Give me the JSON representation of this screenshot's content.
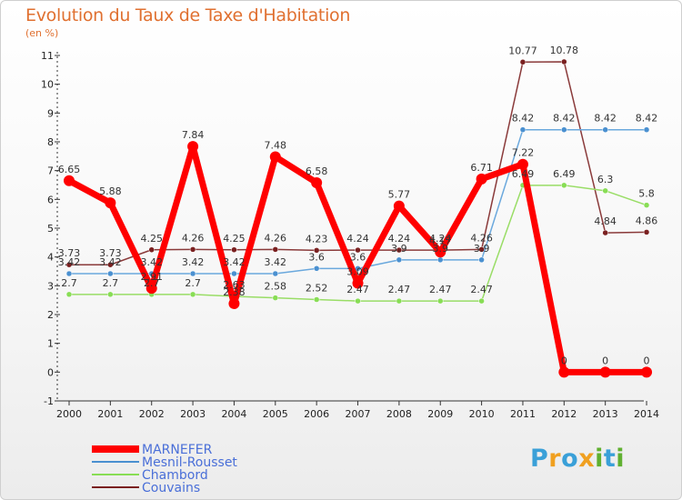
{
  "title": "Evolution du Taux de Taxe d'Habitation",
  "unit": "(en %)",
  "logo": {
    "text": "Proxiti",
    "colors": [
      "#3aa0d8",
      "#f0a020",
      "#3aa0d8",
      "#f0a020",
      "#60b030",
      "#3aa0d8",
      "#60b030"
    ]
  },
  "chart_data": {
    "type": "line",
    "title": "Evolution du Taux de Taxe d'Habitation",
    "ylabel": "(en %)",
    "x": [
      2000,
      2001,
      2002,
      2003,
      2004,
      2005,
      2006,
      2007,
      2008,
      2009,
      2010,
      2011,
      2012,
      2013,
      2014
    ],
    "ylim": [
      -1,
      11
    ],
    "yticks": [
      -1,
      0,
      1,
      2,
      3,
      4,
      5,
      6,
      7,
      8,
      9,
      10,
      11
    ],
    "series": [
      {
        "name": "Couvains",
        "color": "#7a2020",
        "lineColor": "#8a3a3a",
        "width": 1.5,
        "marker": 3,
        "values": [
          3.73,
          3.73,
          4.25,
          4.26,
          4.25,
          4.26,
          4.23,
          4.24,
          4.24,
          4.24,
          4.26,
          10.77,
          10.78,
          4.84,
          4.86
        ]
      },
      {
        "name": "Chambord",
        "color": "#88dd55",
        "lineColor": "#99dd66",
        "width": 1.5,
        "marker": 3,
        "values": [
          2.7,
          2.7,
          2.7,
          2.7,
          2.63,
          2.58,
          2.52,
          2.47,
          2.47,
          2.47,
          2.47,
          6.49,
          6.49,
          6.3,
          5.8
        ]
      },
      {
        "name": "Mesnil-Rousset",
        "color": "#4a90d0",
        "lineColor": "#6aa8dd",
        "width": 1.5,
        "marker": 3,
        "values": [
          3.42,
          3.42,
          3.42,
          3.42,
          3.42,
          3.42,
          3.6,
          3.6,
          3.9,
          3.9,
          3.9,
          8.42,
          8.42,
          8.42,
          8.42
        ]
      },
      {
        "name": "MARNEFER",
        "color": "#ff0000",
        "lineColor": "#ff0000",
        "width": 7,
        "marker": 6,
        "values": [
          6.65,
          5.88,
          2.91,
          7.84,
          2.38,
          7.48,
          6.58,
          3.09,
          5.77,
          4.17,
          6.71,
          7.22,
          0,
          0,
          0
        ]
      }
    ],
    "labels": {
      "Couvains": [
        "3.73",
        "3.73",
        "4.25",
        "4.26",
        "4.25",
        "4.26",
        "4.23",
        "4.24",
        "4.24",
        "4.24",
        "4.26",
        "10.77",
        "10.78",
        "4.84",
        "4.86"
      ],
      "Chambord": [
        "2.7",
        "2.7",
        "2.7",
        "2.7",
        "2.63",
        "2.58",
        "2.52",
        "2.47",
        "2.47",
        "2.47",
        "2.47",
        "6.49",
        "6.49",
        "6.3",
        "5.8"
      ],
      "Mesnil-Rousset": [
        "3.42",
        "3.42",
        "3.42",
        "3.42",
        "3.42",
        "3.42",
        "3.6",
        "3.6",
        "3.9",
        "3.9",
        "3.9",
        "8.42",
        "8.42",
        "8.42",
        "8.42"
      ],
      "MARNEFER": [
        "6.65",
        "5.88",
        "2.91",
        "7.84",
        "2.38",
        "7.48",
        "6.58",
        "3.09",
        "5.77",
        "4.17",
        "6.71",
        "7.22",
        "0",
        "0",
        "0"
      ]
    },
    "legend": [
      {
        "name": "MARNEFER",
        "color": "#ff0000",
        "thick": true
      },
      {
        "name": "Mesnil-Rousset",
        "color": "#4a90d0",
        "thick": false
      },
      {
        "name": "Chambord",
        "color": "#88dd55",
        "thick": false
      },
      {
        "name": "Couvains",
        "color": "#7a2020",
        "thick": false
      }
    ],
    "legend_position": "bottom-left",
    "grid": false
  }
}
